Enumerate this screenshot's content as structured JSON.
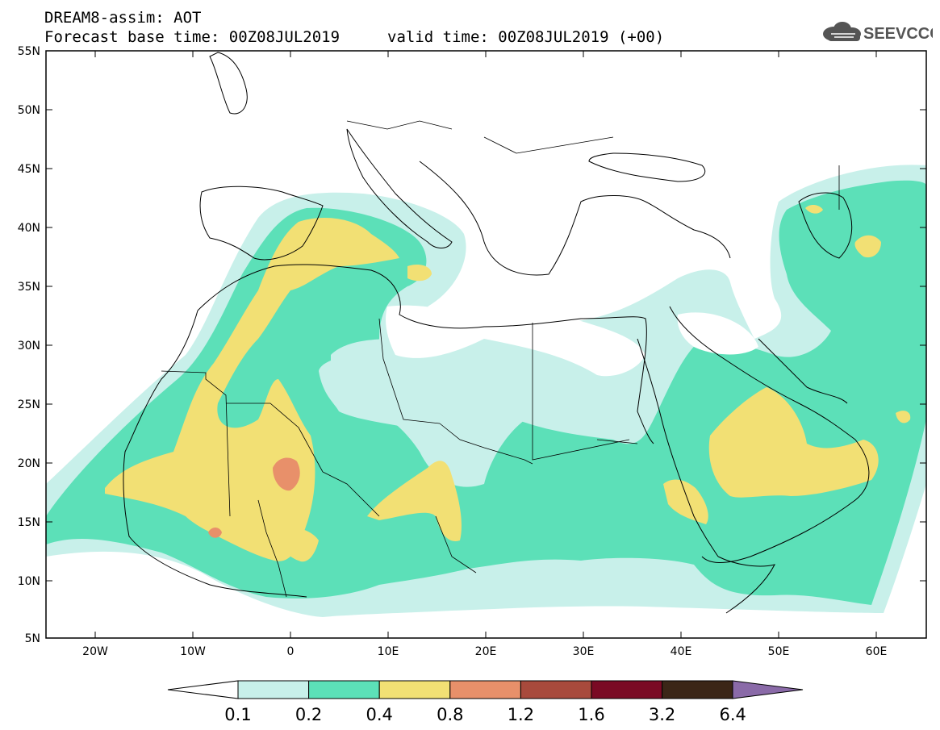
{
  "header": {
    "title_line1": "DREAM8-assim: AOT",
    "title_line2": "Forecast base time: 00Z08JUL2019",
    "valid_time": "valid time: 00Z08JUL2019 (+00)",
    "logo_text": "SEEVCCC"
  },
  "map": {
    "region": "North Africa, Mediterranean, Middle East",
    "lon_range": [
      -25,
      65
    ],
    "lat_range": [
      5,
      55
    ],
    "lat_ticks": [
      "55N",
      "50N",
      "45N",
      "40N",
      "35N",
      "30N",
      "25N",
      "20N",
      "15N",
      "10N",
      "5N"
    ],
    "lon_ticks": [
      "20W",
      "10W",
      "0",
      "10E",
      "20E",
      "30E",
      "40E",
      "50E",
      "60E"
    ],
    "variable": "AOT"
  },
  "colorbar": {
    "labels": [
      "0.1",
      "0.2",
      "0.4",
      "0.8",
      "1.2",
      "1.6",
      "3.2",
      "6.4"
    ],
    "colors": [
      "#c8f0ea",
      "#5ce0b8",
      "#f2e074",
      "#e8906a",
      "#a84a3c",
      "#7a0a24",
      "#3b2617",
      "#8a6aa8"
    ]
  }
}
